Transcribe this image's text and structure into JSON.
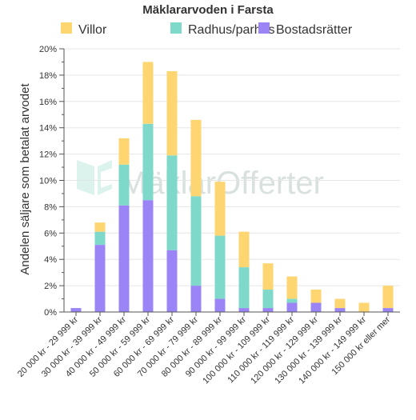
{
  "chart_data": {
    "type": "bar",
    "stacked": true,
    "title": "Mäklararvoden i Farsta",
    "ylabel": "Andelen säljare som betalat arvodet",
    "xlabel": "",
    "ylim": [
      0,
      20
    ],
    "yticks": [
      "0%",
      "2%",
      "4%",
      "6%",
      "8%",
      "10%",
      "12%",
      "14%",
      "16%",
      "18%",
      "20%"
    ],
    "grid": true,
    "legend_position": "top",
    "watermark": "MäklarOfferter",
    "categories": [
      "20 000 kr - 29 999 kr",
      "30 000 kr - 39 999 kr",
      "40 000 kr - 49 999 kr",
      "50 000 kr - 59 999 kr",
      "60 000 kr - 69 999 kr",
      "70 000 kr - 79 999 kr",
      "80 000 kr - 89 999 kr",
      "90 000 kr - 99 999 kr",
      "100 000 kr - 109 999 kr",
      "110 000 kr - 119 999 kr",
      "120 000 kr - 129 999 kr",
      "130 000 kr - 139 999 kr",
      "140 000 kr - 149 999 kr",
      "150 000 kr eller mer"
    ],
    "series": [
      {
        "name": "Bostadsrätter",
        "color": "#9b84f5",
        "values": [
          0.3,
          5.1,
          8.1,
          8.5,
          4.7,
          2.0,
          1.0,
          0.3,
          0.3,
          0.7,
          0.7,
          0.3,
          0,
          0.3
        ]
      },
      {
        "name": "Radhus/parhus",
        "color": "#7fd9cb",
        "values": [
          0,
          1.0,
          3.1,
          5.8,
          7.2,
          6.8,
          4.8,
          3.1,
          1.4,
          0.3,
          0,
          0,
          0,
          0
        ]
      },
      {
        "name": "Villor",
        "color": "#fdd672",
        "values": [
          0,
          0.7,
          2.0,
          4.7,
          6.4,
          5.8,
          4.1,
          2.7,
          2.0,
          1.7,
          1.0,
          0.7,
          0.7,
          1.7
        ]
      }
    ],
    "legend_order": [
      "Villor",
      "Radhus/parhus",
      "Bostadsrätter"
    ]
  }
}
